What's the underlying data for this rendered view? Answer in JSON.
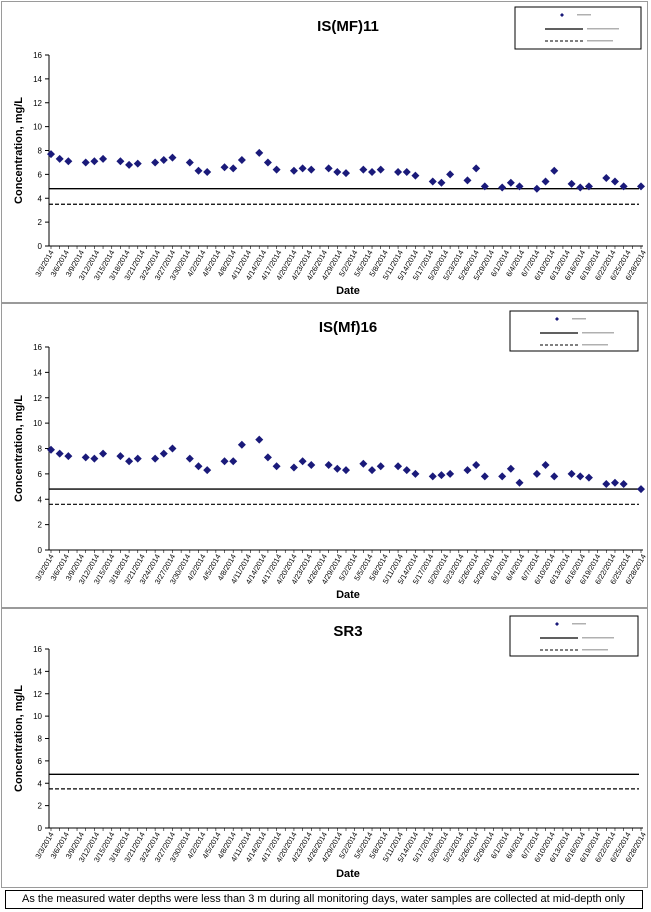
{
  "chart_data": [
    {
      "type": "scatter",
      "title": "IS(MF)11",
      "xlabel": "Date",
      "ylabel": "Concentration, mg/L",
      "ylim": [
        0,
        16
      ],
      "yticks": [
        0,
        2,
        4,
        6,
        8,
        10,
        12,
        14,
        16
      ],
      "grid": false,
      "legend_position": "top-right",
      "categories": [
        "3/3/2014",
        "3/6/2014",
        "3/9/2014",
        "3/12/2014",
        "3/15/2014",
        "3/18/2014",
        "3/21/2014",
        "3/24/2014",
        "3/27/2014",
        "3/30/2014",
        "4/2/2014",
        "4/5/2014",
        "4/8/2014",
        "4/11/2014",
        "4/14/2014",
        "4/17/2014",
        "4/20/2014",
        "4/23/2014",
        "4/26/2014",
        "4/29/2014",
        "5/2/2014",
        "5/5/2014",
        "5/8/2014",
        "5/11/2014",
        "5/14/2014",
        "5/17/2014",
        "5/20/2014",
        "5/23/2014",
        "5/26/2014",
        "5/29/2014",
        "6/1/2014",
        "6/4/2014",
        "6/7/2014",
        "6/10/2014",
        "6/13/2014",
        "6/16/2014",
        "6/19/2014",
        "6/22/2014",
        "6/25/2014",
        "6/28/2014"
      ],
      "points": [
        [
          0,
          7.7
        ],
        [
          1,
          7.3
        ],
        [
          2,
          7.1
        ],
        [
          4,
          7.0
        ],
        [
          5,
          7.1
        ],
        [
          6,
          7.3
        ],
        [
          8,
          7.1
        ],
        [
          9,
          6.8
        ],
        [
          10,
          6.9
        ],
        [
          12,
          7.0
        ],
        [
          13,
          7.2
        ],
        [
          14,
          7.4
        ],
        [
          16,
          7.0
        ],
        [
          17,
          6.3
        ],
        [
          18,
          6.2
        ],
        [
          20,
          6.6
        ],
        [
          21,
          6.5
        ],
        [
          22,
          7.2
        ],
        [
          24,
          7.8
        ],
        [
          25,
          7.0
        ],
        [
          26,
          6.4
        ],
        [
          28,
          6.3
        ],
        [
          29,
          6.5
        ],
        [
          30,
          6.4
        ],
        [
          32,
          6.5
        ],
        [
          33,
          6.2
        ],
        [
          34,
          6.1
        ],
        [
          36,
          6.4
        ],
        [
          37,
          6.2
        ],
        [
          38,
          6.4
        ],
        [
          40,
          6.2
        ],
        [
          41,
          6.2
        ],
        [
          42,
          5.9
        ],
        [
          44,
          5.4
        ],
        [
          45,
          5.3
        ],
        [
          46,
          6.0
        ],
        [
          48,
          5.5
        ],
        [
          49,
          6.5
        ],
        [
          50,
          5.0
        ],
        [
          52,
          4.9
        ],
        [
          53,
          5.3
        ],
        [
          54,
          5.0
        ],
        [
          56,
          4.8
        ],
        [
          57,
          5.4
        ],
        [
          58,
          6.3
        ],
        [
          60,
          5.2
        ],
        [
          61,
          4.9
        ],
        [
          62,
          5.0
        ],
        [
          64,
          5.7
        ],
        [
          65,
          5.4
        ],
        [
          66,
          5.0
        ],
        [
          68,
          5.0
        ]
      ],
      "reference_lines": [
        {
          "y": 4.8,
          "style": "solid"
        },
        {
          "y": 3.5,
          "style": "dashed"
        }
      ]
    },
    {
      "type": "scatter",
      "title": "IS(Mf)16",
      "xlabel": "Date",
      "ylabel": "Concentration, mg/L",
      "ylim": [
        0,
        16
      ],
      "yticks": [
        0,
        2,
        4,
        6,
        8,
        10,
        12,
        14,
        16
      ],
      "grid": false,
      "legend_position": "top-right",
      "categories": [
        "3/3/2014",
        "3/6/2014",
        "3/9/2014",
        "3/12/2014",
        "3/15/2014",
        "3/18/2014",
        "3/21/2014",
        "3/24/2014",
        "3/27/2014",
        "3/30/2014",
        "4/2/2014",
        "4/5/2014",
        "4/8/2014",
        "4/11/2014",
        "4/14/2014",
        "4/17/2014",
        "4/20/2014",
        "4/23/2014",
        "4/26/2014",
        "4/29/2014",
        "5/2/2014",
        "5/5/2014",
        "5/8/2014",
        "5/11/2014",
        "5/14/2014",
        "5/17/2014",
        "5/20/2014",
        "5/23/2014",
        "5/26/2014",
        "5/29/2014",
        "6/1/2014",
        "6/4/2014",
        "6/7/2014",
        "6/10/2014",
        "6/13/2014",
        "6/16/2014",
        "6/19/2014",
        "6/22/2014",
        "6/25/2014",
        "6/28/2014"
      ],
      "points": [
        [
          0,
          7.9
        ],
        [
          1,
          7.6
        ],
        [
          2,
          7.4
        ],
        [
          4,
          7.3
        ],
        [
          5,
          7.2
        ],
        [
          6,
          7.6
        ],
        [
          8,
          7.4
        ],
        [
          9,
          7.0
        ],
        [
          10,
          7.2
        ],
        [
          12,
          7.2
        ],
        [
          13,
          7.6
        ],
        [
          14,
          8.0
        ],
        [
          16,
          7.2
        ],
        [
          17,
          6.6
        ],
        [
          18,
          6.3
        ],
        [
          20,
          7.0
        ],
        [
          21,
          7.0
        ],
        [
          22,
          8.3
        ],
        [
          24,
          8.7
        ],
        [
          25,
          7.3
        ],
        [
          26,
          6.6
        ],
        [
          28,
          6.5
        ],
        [
          29,
          7.0
        ],
        [
          30,
          6.7
        ],
        [
          32,
          6.7
        ],
        [
          33,
          6.4
        ],
        [
          34,
          6.3
        ],
        [
          36,
          6.8
        ],
        [
          37,
          6.3
        ],
        [
          38,
          6.6
        ],
        [
          40,
          6.6
        ],
        [
          41,
          6.3
        ],
        [
          42,
          6.0
        ],
        [
          44,
          5.8
        ],
        [
          45,
          5.9
        ],
        [
          46,
          6.0
        ],
        [
          48,
          6.3
        ],
        [
          49,
          6.7
        ],
        [
          50,
          5.8
        ],
        [
          52,
          5.8
        ],
        [
          53,
          6.4
        ],
        [
          54,
          5.3
        ],
        [
          56,
          6.0
        ],
        [
          57,
          6.7
        ],
        [
          58,
          5.8
        ],
        [
          60,
          6.0
        ],
        [
          61,
          5.8
        ],
        [
          62,
          5.7
        ],
        [
          64,
          5.2
        ],
        [
          65,
          5.3
        ],
        [
          66,
          5.2
        ],
        [
          68,
          4.8
        ]
      ],
      "reference_lines": [
        {
          "y": 4.8,
          "style": "solid"
        },
        {
          "y": 3.6,
          "style": "dashed"
        }
      ]
    },
    {
      "type": "scatter",
      "title": "SR3",
      "xlabel": "Date",
      "ylabel": "Concentration, mg/L",
      "ylim": [
        0,
        16
      ],
      "yticks": [
        0,
        2,
        4,
        6,
        8,
        10,
        12,
        14,
        16
      ],
      "grid": false,
      "legend_position": "top-right",
      "categories": [
        "3/3/2014",
        "3/6/2014",
        "3/9/2014",
        "3/12/2014",
        "3/15/2014",
        "3/18/2014",
        "3/21/2014",
        "3/24/2014",
        "3/27/2014",
        "3/30/2014",
        "4/2/2014",
        "4/5/2014",
        "4/8/2014",
        "4/11/2014",
        "4/14/2014",
        "4/17/2014",
        "4/20/2014",
        "4/23/2014",
        "4/26/2014",
        "4/29/2014",
        "5/2/2014",
        "5/5/2014",
        "5/8/2014",
        "5/11/2014",
        "5/14/2014",
        "5/17/2014",
        "5/20/2014",
        "5/23/2014",
        "5/26/2014",
        "5/29/2014",
        "6/1/2014",
        "6/4/2014",
        "6/7/2014",
        "6/10/2014",
        "6/13/2014",
        "6/16/2014",
        "6/19/2014",
        "6/22/2014",
        "6/25/2014",
        "6/28/2014"
      ],
      "points": [],
      "reference_lines": [
        {
          "y": 4.8,
          "style": "solid"
        },
        {
          "y": 3.5,
          "style": "dashed"
        }
      ]
    }
  ],
  "footnote": "As the measured water depths were less than 3 m during all monitoring days, water samples are collected  at mid-depth only",
  "colors": {
    "marker": "#1a1a7a",
    "line": "#000000"
  }
}
